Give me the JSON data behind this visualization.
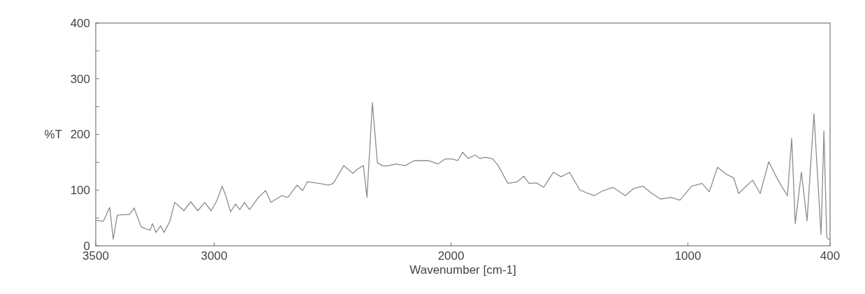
{
  "chart_data": {
    "type": "line",
    "xlabel": "Wavenumber [cm-1]",
    "ylabel": "%T",
    "xlim": [
      3500,
      400
    ],
    "ylim": [
      0,
      400
    ],
    "xticks": [
      3500,
      3000,
      2000,
      1000,
      400
    ],
    "yticks": [
      0,
      {
        "value": 50,
        "label": null
      },
      100,
      {
        "value": 150,
        "label": null
      },
      200,
      {
        "value": 250,
        "label": null
      },
      300,
      {
        "value": 350,
        "label": null
      },
      400
    ],
    "grid": false,
    "marker": "none",
    "line_style": "solid",
    "series": [
      {
        "color": "#8c8c8c",
        "x": [
          3500,
          3468,
          3441,
          3426,
          3409,
          3382,
          3358,
          3338,
          3308,
          3291,
          3270,
          3261,
          3246,
          3226,
          3211,
          3187,
          3167,
          3143,
          3128,
          3099,
          3069,
          3040,
          3013,
          2990,
          2966,
          2951,
          2931,
          2910,
          2892,
          2872,
          2851,
          2813,
          2783,
          2760,
          2715,
          2689,
          2650,
          2627,
          2606,
          2556,
          2518,
          2497,
          2453,
          2414,
          2394,
          2370,
          2355,
          2332,
          2311,
          2291,
          2273,
          2232,
          2193,
          2155,
          2096,
          2055,
          2025,
          1996,
          1972,
          1951,
          1928,
          1898,
          1878,
          1854,
          1824,
          1801,
          1760,
          1721,
          1692,
          1671,
          1639,
          1609,
          1568,
          1535,
          1500,
          1456,
          1397,
          1358,
          1317,
          1264,
          1229,
          1190,
          1152,
          1116,
          1072,
          1034,
          984,
          940,
          910,
          875,
          836,
          807,
          786,
          727,
          695,
          659,
          621,
          580,
          562,
          547,
          521,
          497,
          468,
          438,
          426,
          414,
          400
        ],
        "values": [
          46,
          44,
          69,
          12,
          55,
          56,
          56,
          68,
          34,
          31,
          28,
          40,
          24,
          36,
          24,
          44,
          78,
          69,
          63,
          79,
          63,
          78,
          63,
          80,
          107,
          90,
          61,
          75,
          65,
          78,
          65,
          87,
          99,
          78,
          90,
          87,
          109,
          99,
          115,
          112,
          109,
          112,
          144,
          130,
          138,
          144,
          87,
          257,
          149,
          144,
          143,
          147,
          144,
          153,
          153,
          147,
          156,
          156,
          153,
          168,
          157,
          163,
          157,
          159,
          156,
          144,
          112,
          115,
          125,
          112,
          113,
          105,
          132,
          124,
          132,
          100,
          90,
          99,
          105,
          90,
          103,
          107,
          94,
          84,
          87,
          82,
          107,
          112,
          97,
          141,
          128,
          122,
          94,
          118,
          94,
          151,
          119,
          90,
          193,
          40,
          132,
          45,
          237,
          20,
          206,
          15,
          10
        ]
      }
    ]
  }
}
